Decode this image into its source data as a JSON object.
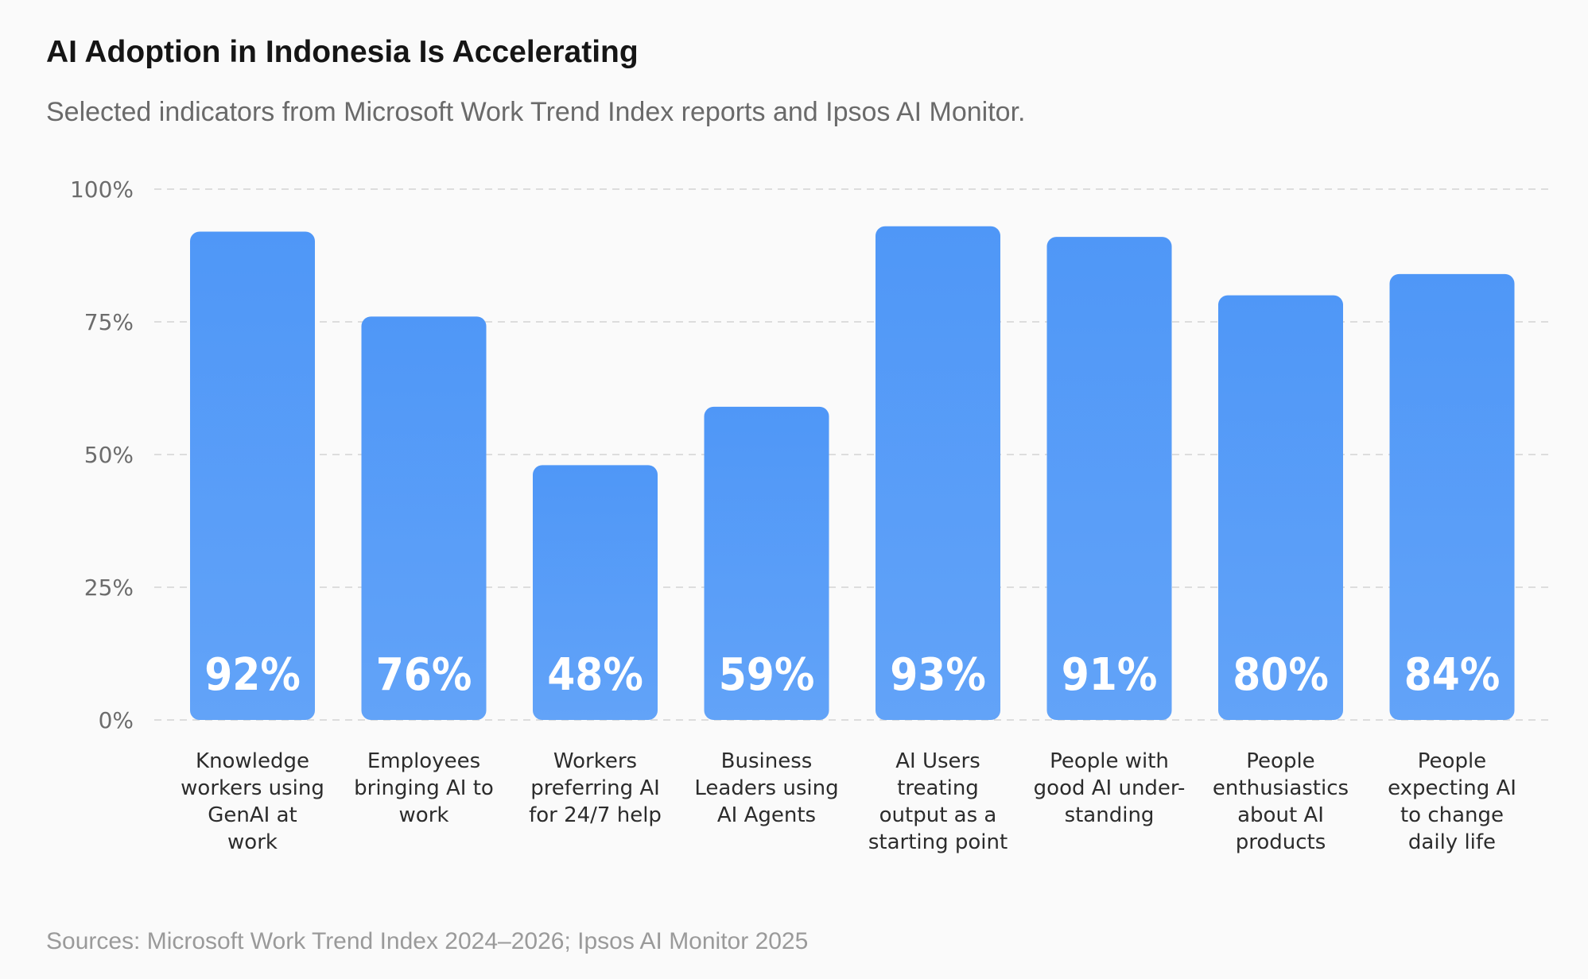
{
  "title": "AI Adoption in Indonesia Is Accelerating",
  "subtitle": "Selected indicators from Microsoft Work Trend Index reports and Ipsos AI Monitor.",
  "source": "Sources: Microsoft Work Trend Index 2024–2026; Ipsos AI Monitor 2025",
  "colors": {
    "bar_top": "#4f97f7",
    "bar_bottom": "#62a3f8",
    "grid": "#dddddd",
    "value_label": "#ffffff"
  },
  "chart_data": {
    "type": "bar",
    "title": "AI Adoption in Indonesia Is Accelerating",
    "xlabel": "",
    "ylabel": "",
    "ylim": [
      0,
      100
    ],
    "grid": true,
    "legend": "none",
    "y_ticks": [
      "0%",
      "25%",
      "50%",
      "75%",
      "100%"
    ],
    "y_tick_values": [
      0,
      25,
      50,
      75,
      100
    ],
    "categories": [
      [
        "Knowledge",
        "workers using",
        "GenAI at",
        "work"
      ],
      [
        "Employees",
        "bringing AI to",
        "work"
      ],
      [
        "Workers",
        "preferring AI",
        "for 24/7 help"
      ],
      [
        "Business",
        "Leaders using",
        "AI Agents"
      ],
      [
        "AI Users",
        "treating",
        "output as a",
        "starting point"
      ],
      [
        "People with",
        "good AI under-",
        "standing"
      ],
      [
        "People",
        "enthusiastics",
        "about AI",
        "products"
      ],
      [
        "People",
        "expecting AI",
        "to change",
        "daily life"
      ]
    ],
    "values": [
      92,
      76,
      48,
      59,
      93,
      91,
      80,
      84
    ],
    "data_labels": [
      "92%",
      "76%",
      "48%",
      "59%",
      "93%",
      "91%",
      "80%",
      "84%"
    ]
  }
}
